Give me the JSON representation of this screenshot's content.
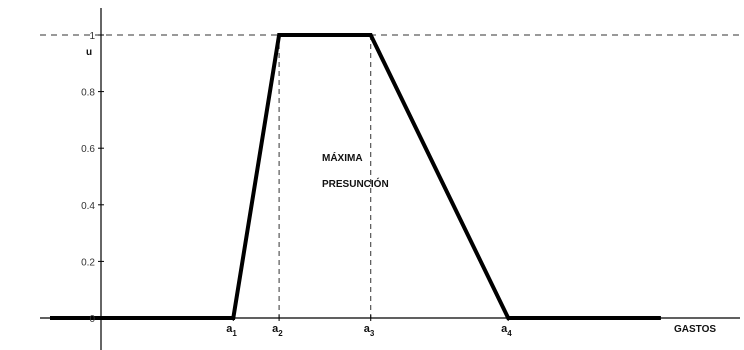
{
  "caption": "",
  "chart_data": {
    "type": "line",
    "title": "",
    "xlabel": "GASTOS",
    "ylabel": "u",
    "xlim": [
      -0.15,
      2.05
    ],
    "ylim": [
      -0.02,
      1.06
    ],
    "y_ticks": [
      "0",
      "0.2",
      "0.4",
      "0.6",
      "0.8",
      "1"
    ],
    "y_tick_values": [
      0,
      0.2,
      0.4,
      0.6,
      0.8,
      1
    ],
    "x_markers": [
      {
        "base": "a",
        "sub": "1",
        "x": 0.45
      },
      {
        "base": "a",
        "sub": "2",
        "x": 0.6
      },
      {
        "base": "a",
        "sub": "3",
        "x": 0.9
      },
      {
        "base": "a",
        "sub": "4",
        "x": 1.35
      }
    ],
    "series": [
      {
        "color": "#000000",
        "points": [
          {
            "x": -0.15,
            "y": 0
          },
          {
            "x": 0.45,
            "y": 0
          },
          {
            "x": 0.6,
            "y": 1
          },
          {
            "x": 0.9,
            "y": 1
          },
          {
            "x": 1.35,
            "y": 0
          },
          {
            "x": 1.85,
            "y": 0
          }
        ]
      }
    ],
    "reference_line": {
      "y": 1,
      "style": "dashed",
      "color": "#333333"
    },
    "annotation_lines": [
      "MÁXIMA",
      "PRESUNCIÓN"
    ],
    "grid": false,
    "legend": "none",
    "colors": {
      "axis": "#000000",
      "dashed": "#333333",
      "text": "#111111"
    }
  }
}
